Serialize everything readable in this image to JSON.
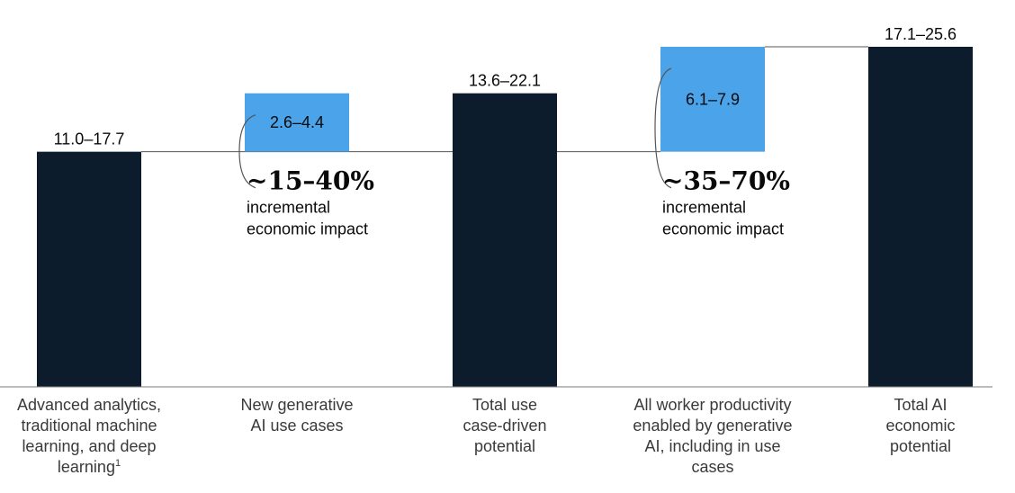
{
  "chart_data": {
    "type": "bar",
    "subtype": "waterfall",
    "categories": [
      {
        "lines": [
          "Advanced analytics,",
          "traditional machine",
          "learning, and deep",
          "learning"
        ],
        "footnote": "1"
      },
      {
        "lines": [
          "New generative",
          "AI use cases"
        ]
      },
      {
        "lines": [
          "Total use",
          "case-driven",
          "potential"
        ]
      },
      {
        "lines": [
          "All worker productivity",
          "enabled by generative",
          "AI, including in use",
          "cases"
        ]
      },
      {
        "lines": [
          "Total AI",
          "economic",
          "potential"
        ]
      }
    ],
    "bars": [
      {
        "kind": "total",
        "value": 17.7,
        "label": "11.0–17.7"
      },
      {
        "kind": "increment",
        "base": 17.7,
        "value": 4.4,
        "label": "2.6–4.4"
      },
      {
        "kind": "total",
        "value": 22.1,
        "label": "13.6–22.1"
      },
      {
        "kind": "increment",
        "base": 17.7,
        "value": 7.9,
        "label": "6.1–7.9"
      },
      {
        "kind": "total",
        "value": 25.6,
        "label": "17.1–25.6"
      }
    ],
    "annotations": [
      {
        "after_bar": 1,
        "value": "~15–40%",
        "text": [
          "incremental",
          "economic impact"
        ]
      },
      {
        "after_bar": 3,
        "value": "~35–70%",
        "text": [
          "incremental",
          "economic impact"
        ]
      }
    ],
    "ylim": [
      0,
      25.6
    ],
    "colors": {
      "total": "#0c1c2c",
      "increment": "#4ba3ea",
      "connector": "#555555",
      "axis": "#7a7a7a"
    }
  }
}
